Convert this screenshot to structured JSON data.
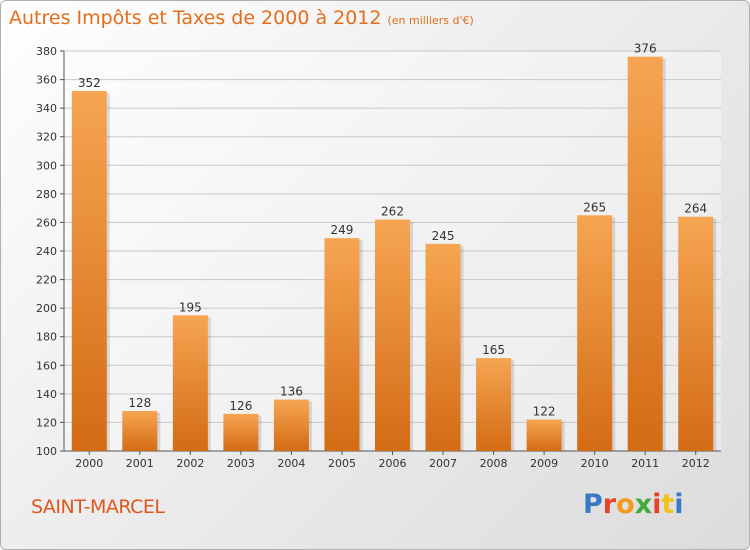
{
  "title": "Autres Impôts et Taxes de 2000 à 2012",
  "unit": "(en milliers d'€)",
  "town": "SAINT-MARCEL",
  "logo": {
    "letters": [
      "P",
      "r",
      "o",
      "x",
      "i",
      "t",
      "i"
    ],
    "colors": [
      "#3a78c6",
      "#e9402b",
      "#f39a1b",
      "#44a83a",
      "#e9402b",
      "#f3c21b",
      "#3a78c6"
    ]
  },
  "colors": {
    "bar_top": "#f6a552",
    "bar_bottom": "#d46b15",
    "accent": "#e46d1a",
    "grid": "#c8c8c8"
  },
  "chart_data": {
    "type": "bar",
    "categories": [
      "2000",
      "2001",
      "2002",
      "2003",
      "2004",
      "2005",
      "2006",
      "2007",
      "2008",
      "2009",
      "2010",
      "2011",
      "2012"
    ],
    "values": [
      352,
      128,
      195,
      126,
      136,
      249,
      262,
      245,
      165,
      122,
      265,
      376,
      264
    ],
    "ylim": [
      100,
      380
    ],
    "yticks": [
      100,
      120,
      140,
      160,
      180,
      200,
      220,
      240,
      260,
      280,
      300,
      320,
      340,
      360,
      380
    ],
    "grid": true,
    "title": "Autres Impôts et Taxes de 2000 à 2012",
    "xlabel": "",
    "ylabel": ""
  }
}
